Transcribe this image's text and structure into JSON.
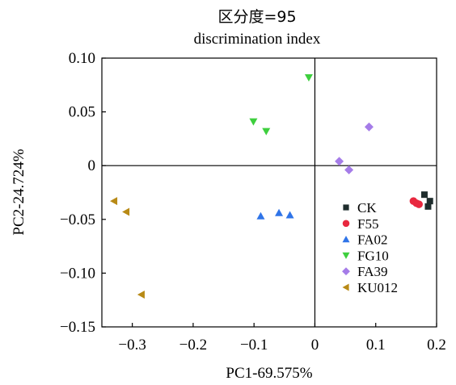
{
  "chart_data": {
    "type": "scatter",
    "title": "区分度=95",
    "subtitle": "discrimination index",
    "xlabel": "PC1-69.575%",
    "ylabel": "PC2-24.724%",
    "xlim": [
      -0.35,
      0.2
    ],
    "ylim": [
      -0.15,
      0.1
    ],
    "x_ticks": [
      -0.3,
      -0.2,
      -0.1,
      0,
      0.1,
      0.2
    ],
    "x_tick_labels": [
      "−0.3",
      "−0.2",
      "−0.1",
      "0",
      "0.1",
      "0.2"
    ],
    "y_ticks": [
      0.1,
      0.05,
      0,
      -0.05,
      -0.1,
      -0.15
    ],
    "y_tick_labels": [
      "0.10",
      "0.05",
      "0",
      "−0.05",
      "−0.10",
      "−0.15"
    ],
    "reference_lines": {
      "x": 0,
      "y": 0
    },
    "grid": false,
    "legend_position": "right-middle",
    "series": [
      {
        "name": "CK",
        "marker": "square",
        "color": "#1f2d2d",
        "points": [
          [
            0.18,
            -0.027
          ],
          [
            0.186,
            -0.038
          ],
          [
            0.189,
            -0.033
          ]
        ]
      },
      {
        "name": "F55",
        "marker": "circle",
        "color": "#e8283f",
        "points": [
          [
            0.162,
            -0.033
          ],
          [
            0.167,
            -0.035
          ],
          [
            0.171,
            -0.036
          ]
        ]
      },
      {
        "name": "FA02",
        "marker": "triangle-up",
        "color": "#2f74e8",
        "points": [
          [
            -0.089,
            -0.047
          ],
          [
            -0.059,
            -0.044
          ],
          [
            -0.041,
            -0.046
          ]
        ]
      },
      {
        "name": "FG10",
        "marker": "triangle-down",
        "color": "#3ecf3e",
        "points": [
          [
            -0.101,
            0.041
          ],
          [
            -0.08,
            0.032
          ],
          [
            -0.01,
            0.082
          ]
        ]
      },
      {
        "name": "FA39",
        "marker": "diamond",
        "color": "#a57ce8",
        "points": [
          [
            0.04,
            0.004
          ],
          [
            0.056,
            -0.004
          ],
          [
            0.089,
            0.036
          ]
        ]
      },
      {
        "name": "KU012",
        "marker": "triangle-left",
        "color": "#b88a16",
        "points": [
          [
            -0.33,
            -0.033
          ],
          [
            -0.31,
            -0.043
          ],
          [
            -0.285,
            -0.12
          ]
        ]
      }
    ]
  }
}
